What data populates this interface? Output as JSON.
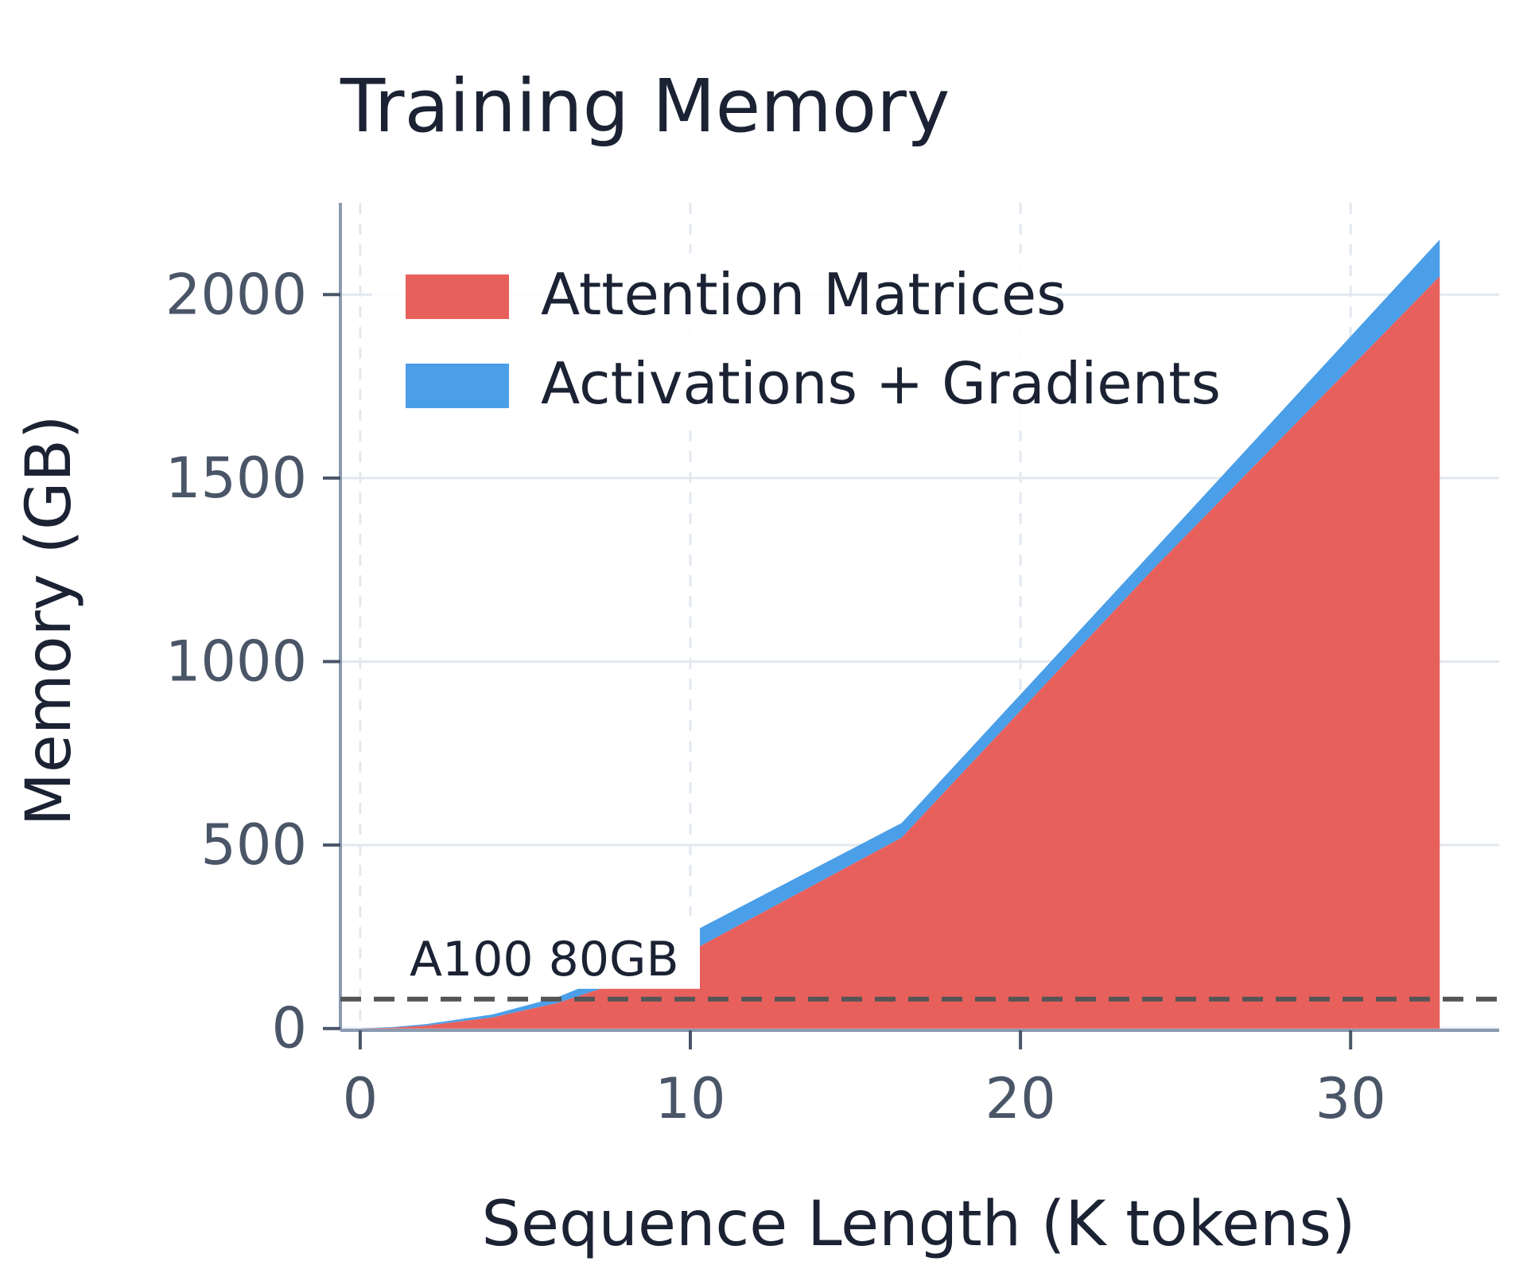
{
  "chart_data": {
    "type": "area",
    "stacked": true,
    "title": "Training Memory",
    "xlabel": "Sequence Length (K tokens)",
    "ylabel": "Memory (GB)",
    "xlim": [
      -0.6,
      34.5
    ],
    "ylim": [
      -5,
      2250
    ],
    "xticks": [
      0,
      10,
      20,
      30
    ],
    "yticks": [
      0,
      500,
      1000,
      1500,
      2000
    ],
    "x": [
      0,
      1,
      2,
      4,
      6,
      8,
      10,
      16.4,
      24,
      32.7
    ],
    "series": [
      {
        "name": "Attention Matrices",
        "color": "#e8605c",
        "values": [
          0,
          2,
          8,
          30,
          70,
          130,
          210,
          520,
          1250,
          2050
        ]
      },
      {
        "name": "Activations + Gradients",
        "color": "#4a9fe8",
        "values": [
          0,
          2,
          4,
          8,
          16,
          30,
          50,
          40,
          50,
          100
        ]
      }
    ],
    "reference_line": {
      "y": 80,
      "label": "A100 80GB",
      "color": "#555555",
      "style": "dashed"
    },
    "grid": true,
    "legend": "top-left"
  }
}
